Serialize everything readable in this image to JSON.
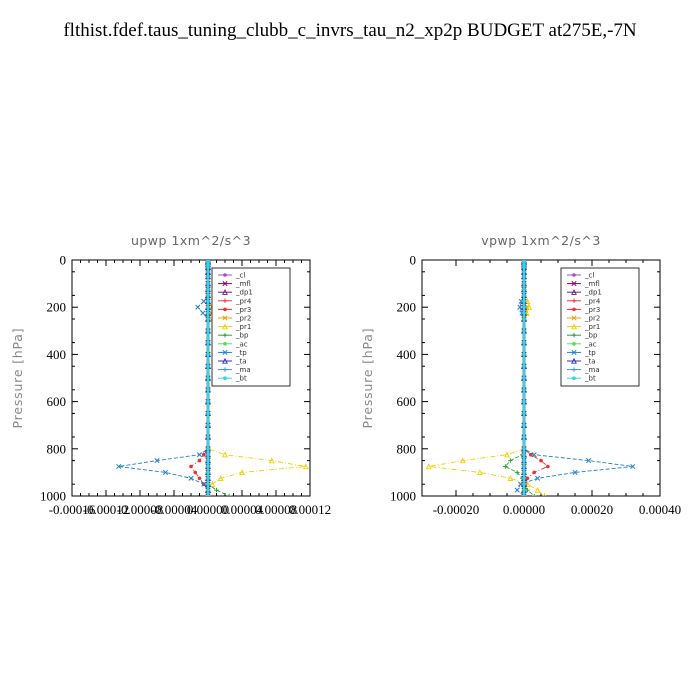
{
  "figure_title": "flthist.fdef.taus_tuning_clubb_c_invrs_tau_n2_xp2p  BUDGET at275E,-7N",
  "chart_data": [
    {
      "type": "line",
      "title": "upwp   1xm^2/s^3",
      "ylabel": "Pressure [hPa]",
      "xlim": [
        -0.00016,
        0.00012
      ],
      "ylim": [
        1000,
        0
      ],
      "x_tick_labels": [
        "-0.00016",
        "-0.00012",
        "-0.00008",
        "-0.00004",
        "0.00000",
        "0.00004",
        "0.00008",
        "0.00012"
      ],
      "y_tick_labels": [
        "0",
        "200",
        "400",
        "600",
        "800",
        "1000"
      ],
      "legend_position": "top-right",
      "levels": [
        3,
        10,
        20,
        30,
        50,
        70,
        100,
        125,
        150,
        175,
        200,
        225,
        250,
        300,
        350,
        400,
        450,
        500,
        550,
        600,
        650,
        700,
        750,
        800,
        825,
        850,
        875,
        900,
        925,
        950,
        975,
        1000
      ],
      "series": [
        {
          "name": "_cl",
          "color": "#a050c8",
          "values": [
            0,
            0,
            0,
            0,
            0,
            0,
            0,
            0,
            0,
            0,
            0,
            0,
            0,
            0,
            0,
            0,
            0,
            0,
            0,
            0,
            0,
            0,
            0,
            0,
            0,
            0,
            0,
            0,
            0,
            0,
            0,
            0
          ]
        },
        {
          "name": "_mfl",
          "color": "#8c0064",
          "values": [
            0,
            0,
            0,
            0,
            0,
            0,
            0,
            0,
            0,
            0,
            0,
            0,
            0,
            0,
            0,
            0,
            0,
            0,
            0,
            0,
            0,
            0,
            0,
            0,
            0,
            0,
            0,
            0,
            0,
            0,
            0,
            0
          ]
        },
        {
          "name": "_dp1",
          "color": "#781e78",
          "values": [
            0,
            0,
            0,
            0,
            0,
            0,
            0,
            0,
            0,
            0,
            0,
            0,
            0,
            0,
            0,
            0,
            0,
            0,
            0,
            0,
            0,
            0,
            0,
            0,
            0,
            0,
            0,
            0,
            0,
            0,
            0,
            0
          ]
        },
        {
          "name": "_pr4",
          "color": "#e04040",
          "values": [
            0,
            0,
            0,
            0,
            0,
            0,
            0,
            0,
            0,
            0,
            0,
            0,
            0,
            0,
            0,
            0,
            0,
            0,
            0,
            0,
            0,
            0,
            0,
            0,
            0,
            0,
            0,
            0,
            0,
            0,
            0,
            0
          ]
        },
        {
          "name": "_pr3",
          "color": "#f03030",
          "values": [
            0,
            0,
            0,
            0,
            0,
            0,
            0,
            0,
            0,
            0,
            0,
            0,
            0,
            0,
            0,
            0,
            0,
            0,
            0,
            0,
            0,
            0,
            0,
            0,
            -5e-06,
            -1e-05,
            -2e-05,
            -1.5e-05,
            -1e-05,
            -5e-06,
            0,
            0
          ]
        },
        {
          "name": "_pr2",
          "color": "#f0a000",
          "values": [
            0,
            0,
            0,
            0,
            0,
            0,
            0,
            0,
            0,
            0,
            5e-06,
            4e-06,
            0,
            0,
            0,
            0,
            0,
            0,
            0,
            0,
            0,
            0,
            0,
            0,
            0,
            0,
            0,
            0,
            0,
            0,
            0,
            0
          ]
        },
        {
          "name": "_pr1",
          "color": "#f0d000",
          "values": [
            0,
            0,
            0,
            0,
            0,
            0,
            0,
            0,
            0,
            1e-05,
            1.5e-05,
            8e-06,
            2e-06,
            0,
            0,
            0,
            0,
            0,
            0,
            0,
            0,
            0,
            0,
            0,
            2e-05,
            7.5e-05,
            0.000115,
            4e-05,
            1.5e-05,
            5e-06,
            0,
            0
          ]
        },
        {
          "name": "_bp",
          "color": "#30a030",
          "values": [
            0,
            0,
            0,
            0,
            0,
            0,
            0,
            0,
            0,
            0,
            0,
            0,
            0,
            0,
            0,
            0,
            0,
            0,
            0,
            0,
            0,
            0,
            0,
            0,
            0,
            0,
            0,
            0,
            0,
            0,
            1e-05,
            2.5e-05
          ]
        },
        {
          "name": "_ac",
          "color": "#50e050",
          "values": [
            0,
            0,
            0,
            0,
            0,
            0,
            0,
            0,
            0,
            0,
            0,
            0,
            0,
            0,
            0,
            0,
            0,
            0,
            0,
            0,
            0,
            0,
            0,
            0,
            0,
            0,
            0,
            0,
            0,
            0,
            0,
            0
          ]
        },
        {
          "name": "_tp",
          "color": "#2080c8",
          "values": [
            0,
            0,
            0,
            0,
            0,
            0,
            0,
            0,
            0,
            -5e-06,
            -1.2e-05,
            -6e-06,
            0,
            0,
            0,
            0,
            0,
            0,
            0,
            0,
            0,
            0,
            0,
            0,
            -1e-05,
            -6e-05,
            -0.000105,
            -5e-05,
            -2e-05,
            -5e-06,
            0,
            0
          ]
        },
        {
          "name": "_ta",
          "color": "#3030c0",
          "values": [
            0,
            0,
            0,
            0,
            0,
            0,
            0,
            0,
            0,
            0,
            0,
            0,
            0,
            0,
            0,
            0,
            0,
            0,
            0,
            0,
            0,
            0,
            0,
            0,
            0,
            0,
            0,
            0,
            0,
            0,
            0,
            0
          ]
        },
        {
          "name": "_ma",
          "color": "#4090e0",
          "values": [
            0,
            0,
            0,
            0,
            0,
            0,
            0,
            0,
            0,
            0,
            0,
            0,
            0,
            0,
            0,
            0,
            0,
            0,
            0,
            0,
            0,
            0,
            0,
            0,
            0,
            0,
            0,
            0,
            0,
            0,
            0,
            0
          ]
        },
        {
          "name": "_bt",
          "color": "#30d8d8",
          "values": [
            0,
            0,
            0,
            0,
            0,
            0,
            0,
            0,
            0,
            0,
            0,
            0,
            0,
            0,
            0,
            0,
            0,
            0,
            0,
            0,
            0,
            0,
            0,
            0,
            0,
            0,
            0,
            0,
            0,
            0,
            0,
            0
          ]
        }
      ]
    },
    {
      "type": "line",
      "title": "vpwp   1xm^2/s^3",
      "ylabel": "Pressure [hPa]",
      "xlim": [
        -0.0003,
        0.0004
      ],
      "ylim": [
        1000,
        0
      ],
      "x_tick_labels": [
        "-0.00020",
        "0.00000",
        "0.00020",
        "0.00040"
      ],
      "y_tick_labels": [
        "0",
        "200",
        "400",
        "600",
        "800",
        "1000"
      ],
      "legend_position": "top-right",
      "levels": [
        3,
        10,
        20,
        30,
        50,
        70,
        100,
        125,
        150,
        175,
        200,
        225,
        250,
        300,
        350,
        400,
        450,
        500,
        550,
        600,
        650,
        700,
        750,
        800,
        825,
        850,
        875,
        900,
        925,
        950,
        975,
        1000
      ],
      "series": [
        {
          "name": "_cl",
          "color": "#a050c8",
          "values": [
            0,
            0,
            0,
            0,
            0,
            0,
            0,
            0,
            0,
            0,
            0,
            0,
            0,
            0,
            0,
            0,
            0,
            0,
            0,
            0,
            0,
            0,
            0,
            0,
            0,
            0,
            0,
            0,
            0,
            0,
            0,
            0
          ]
        },
        {
          "name": "_mfl",
          "color": "#8c0064",
          "values": [
            0,
            0,
            0,
            0,
            0,
            0,
            0,
            0,
            0,
            0,
            0,
            0,
            0,
            0,
            0,
            0,
            0,
            0,
            0,
            0,
            0,
            0,
            0,
            0,
            0,
            0,
            0,
            0,
            0,
            0,
            0,
            0
          ]
        },
        {
          "name": "_dp1",
          "color": "#781e78",
          "values": [
            0,
            0,
            0,
            0,
            0,
            0,
            0,
            0,
            0,
            0,
            0,
            0,
            0,
            0,
            0,
            0,
            0,
            0,
            0,
            0,
            0,
            0,
            0,
            0,
            0,
            0,
            0,
            0,
            0,
            0,
            0,
            0
          ]
        },
        {
          "name": "_pr4",
          "color": "#e04040",
          "values": [
            0,
            0,
            0,
            0,
            0,
            0,
            0,
            0,
            0,
            0,
            0,
            0,
            0,
            0,
            0,
            0,
            0,
            0,
            0,
            0,
            0,
            0,
            0,
            0,
            0,
            0,
            0,
            0,
            0,
            0,
            0,
            0
          ]
        },
        {
          "name": "_pr3",
          "color": "#f03030",
          "values": [
            0,
            0,
            0,
            0,
            0,
            0,
            0,
            0,
            0,
            0,
            0,
            0,
            0,
            0,
            0,
            0,
            0,
            0,
            0,
            0,
            0,
            0,
            0,
            0,
            2e-05,
            5e-05,
            7e-05,
            3e-05,
            1e-05,
            5e-06,
            0,
            0
          ]
        },
        {
          "name": "_pr2",
          "color": "#f0a000",
          "values": [
            0,
            0,
            0,
            0,
            0,
            0,
            0,
            0,
            0,
            0,
            8e-06,
            5e-06,
            0,
            0,
            0,
            0,
            0,
            0,
            0,
            0,
            0,
            0,
            0,
            0,
            0,
            0,
            0,
            0,
            0,
            0,
            0,
            0
          ]
        },
        {
          "name": "_pr1",
          "color": "#f0d000",
          "values": [
            0,
            0,
            0,
            0,
            0,
            0,
            0,
            0,
            0,
            1e-05,
            1.5e-05,
            8e-06,
            2e-06,
            0,
            0,
            0,
            0,
            0,
            0,
            0,
            0,
            0,
            0,
            0,
            -5e-05,
            -0.00018,
            -0.00028,
            -0.00013,
            -4e-05,
            1e-05,
            4e-05,
            6e-05
          ]
        },
        {
          "name": "_bp",
          "color": "#30a030",
          "values": [
            0,
            0,
            0,
            0,
            0,
            0,
            0,
            0,
            0,
            0,
            0,
            0,
            0,
            0,
            0,
            0,
            0,
            0,
            0,
            0,
            0,
            0,
            0,
            0,
            -5e-06,
            -4e-05,
            -5.5e-05,
            -2e-05,
            -5e-06,
            0,
            1e-05,
            3e-05
          ]
        },
        {
          "name": "_ac",
          "color": "#50e050",
          "values": [
            0,
            0,
            0,
            0,
            0,
            0,
            0,
            0,
            0,
            0,
            0,
            0,
            0,
            0,
            0,
            0,
            0,
            0,
            0,
            0,
            0,
            0,
            0,
            0,
            0,
            0,
            0,
            0,
            0,
            0,
            0,
            0
          ]
        },
        {
          "name": "_tp",
          "color": "#2080c8",
          "values": [
            0,
            0,
            0,
            0,
            0,
            0,
            0,
            0,
            0,
            -8e-06,
            -1.2e-05,
            -6e-06,
            0,
            0,
            0,
            0,
            0,
            0,
            0,
            0,
            0,
            0,
            0,
            0,
            3e-05,
            0.00019,
            0.00032,
            0.00015,
            4e-05,
            -1e-05,
            -2e-05,
            0
          ]
        },
        {
          "name": "_ta",
          "color": "#3030c0",
          "values": [
            0,
            0,
            0,
            0,
            0,
            0,
            0,
            0,
            0,
            0,
            0,
            0,
            0,
            0,
            0,
            0,
            0,
            0,
            0,
            0,
            0,
            0,
            0,
            0,
            0,
            0,
            0,
            0,
            0,
            0,
            0,
            0
          ]
        },
        {
          "name": "_ma",
          "color": "#4090e0",
          "values": [
            0,
            0,
            0,
            0,
            0,
            0,
            0,
            0,
            0,
            0,
            0,
            0,
            0,
            0,
            0,
            0,
            0,
            0,
            0,
            0,
            0,
            0,
            0,
            0,
            0,
            0,
            0,
            0,
            0,
            0,
            0,
            0
          ]
        },
        {
          "name": "_bt",
          "color": "#30d8d8",
          "values": [
            0,
            0,
            0,
            0,
            0,
            0,
            0,
            0,
            0,
            0,
            0,
            0,
            0,
            0,
            0,
            0,
            0,
            0,
            0,
            0,
            0,
            0,
            0,
            0,
            0,
            0,
            0,
            0,
            0,
            0,
            0,
            0
          ]
        }
      ]
    }
  ]
}
